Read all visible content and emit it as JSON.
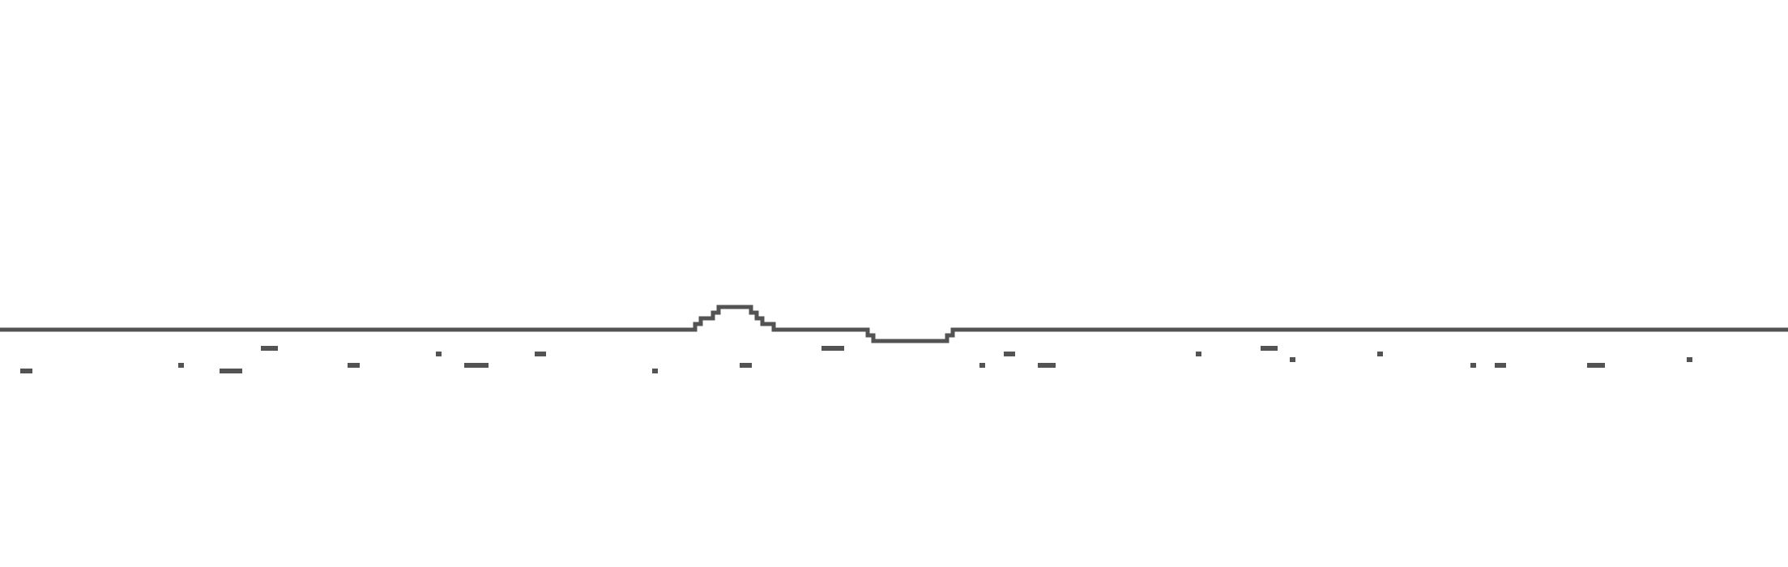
{
  "game": {
    "scene": "runner-ground-strip",
    "palette": {
      "background": "#ffffff",
      "ground": "#535353"
    }
  }
}
